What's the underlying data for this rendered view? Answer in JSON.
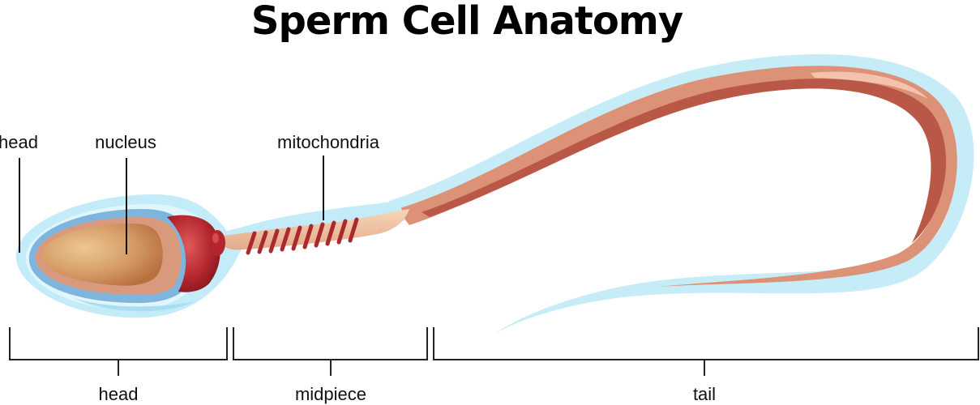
{
  "title": "Sperm Cell Anatomy",
  "labels": {
    "head_top": "head",
    "nucleus": "nucleus",
    "mitochondria": "mitochondria",
    "head_bottom": "head",
    "midpiece": "midpiece",
    "tail": "tail"
  },
  "colors": {
    "membrane": "#bfeaf7",
    "membrane_light": "#dcf5fc",
    "acrosome": "#7fb3d9",
    "head_outer": "#d99a7a",
    "nucleus": "#c98356",
    "nucleus_highlight": "#e8c08a",
    "neck": "#b3262e",
    "neck_dark": "#8e1a22",
    "midpiece": "#f2c09e",
    "mito_band": "#a82a2f",
    "tail": "#d98a72",
    "tail_dark": "#b85a48",
    "tail_light": "#f2b9a2"
  }
}
